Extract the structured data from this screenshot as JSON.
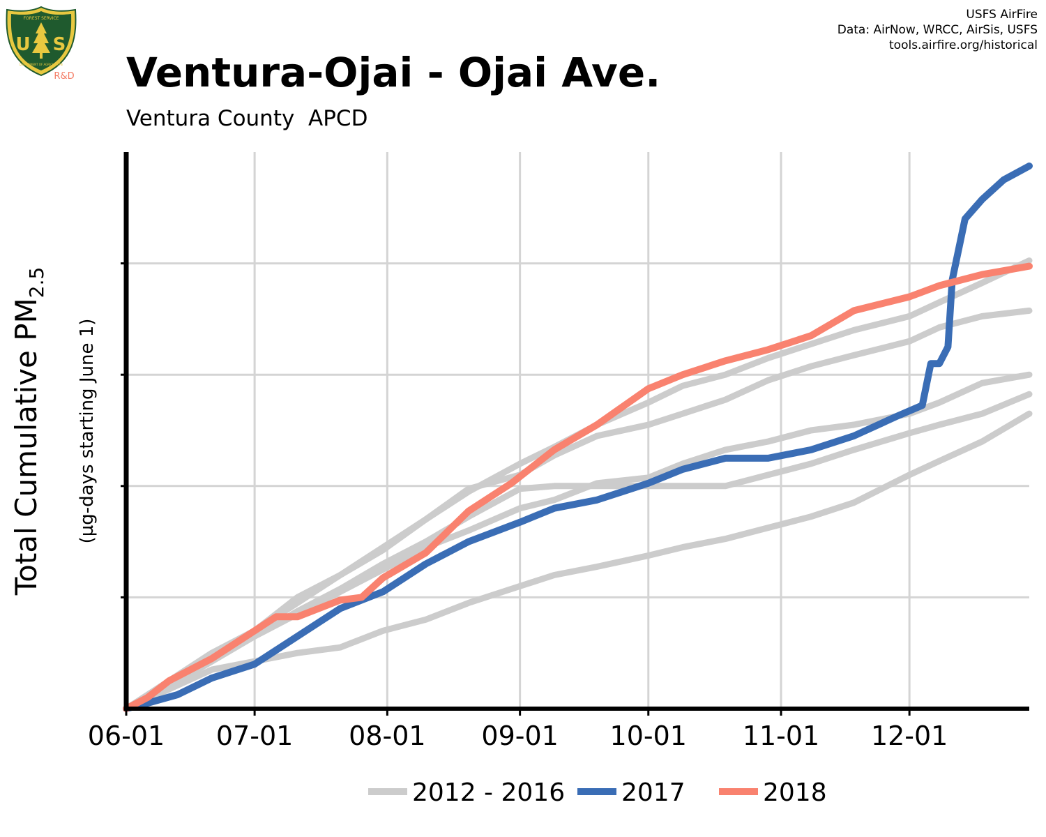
{
  "header": {
    "title": "Ventura-Ojai - Ojai Ave.",
    "subtitle": "Ventura County  APCD",
    "credits": [
      "USFS AirFire",
      "Data: AirNow, WRCC, AirSis, USFS",
      "tools.airfire.org/historical"
    ],
    "logo": {
      "ring_text": "FOREST SERVICE",
      "initials_left": "U",
      "initials_right": "S",
      "bottom_text": "DEPARTMENT OF AGRICULTURE",
      "tag": "R&D",
      "colors": {
        "fill": "#1f5a2e",
        "accent": "#e8c840",
        "tag": "#f47b63"
      }
    }
  },
  "chart_data": {
    "type": "line",
    "title": "",
    "ylabel_main": "Total Cumulative PM",
    "ylabel_sub": "2.5",
    "ylabel2": "(µg-days starting June 1)",
    "x_domain_days": [
      0,
      211
    ],
    "xticks": [
      {
        "label": "06-01",
        "day": 0
      },
      {
        "label": "07-01",
        "day": 30
      },
      {
        "label": "08-01",
        "day": 61
      },
      {
        "label": "09-01",
        "day": 92
      },
      {
        "label": "10-01",
        "day": 122
      },
      {
        "label": "11-01",
        "day": 153
      },
      {
        "label": "12-01",
        "day": 183
      }
    ],
    "ylim": [
      0,
      1000
    ],
    "yticks": [
      0,
      200,
      400,
      600,
      800
    ],
    "ytick_labels_shown": false,
    "grid": true,
    "legend_position": "bottom",
    "legend": [
      {
        "label": "2012 - 2016",
        "color": "#cccccc"
      },
      {
        "label": "2017",
        "color": "#3a6db5"
      },
      {
        "label": "2018",
        "color": "#f9826f"
      }
    ],
    "series": [
      {
        "group": "2012 - 2016",
        "color": "#cccccc",
        "points": [
          [
            0,
            0
          ],
          [
            10,
            50
          ],
          [
            20,
            100
          ],
          [
            30,
            140
          ],
          [
            40,
            190
          ],
          [
            50,
            240
          ],
          [
            60,
            290
          ],
          [
            70,
            340
          ],
          [
            80,
            390
          ],
          [
            92,
            440
          ],
          [
            100,
            470
          ],
          [
            110,
            510
          ],
          [
            122,
            550
          ],
          [
            130,
            580
          ],
          [
            140,
            600
          ],
          [
            150,
            630
          ],
          [
            160,
            655
          ],
          [
            170,
            680
          ],
          [
            183,
            705
          ],
          [
            190,
            730
          ],
          [
            200,
            765
          ],
          [
            211,
            805
          ]
        ]
      },
      {
        "group": "2012 - 2016",
        "color": "#cccccc",
        "points": [
          [
            0,
            0
          ],
          [
            10,
            40
          ],
          [
            20,
            85
          ],
          [
            30,
            130
          ],
          [
            40,
            175
          ],
          [
            50,
            215
          ],
          [
            60,
            260
          ],
          [
            70,
            300
          ],
          [
            80,
            345
          ],
          [
            92,
            395
          ],
          [
            100,
            400
          ],
          [
            110,
            400
          ],
          [
            122,
            400
          ],
          [
            130,
            400
          ],
          [
            140,
            400
          ],
          [
            150,
            420
          ],
          [
            160,
            440
          ],
          [
            170,
            465
          ],
          [
            183,
            495
          ],
          [
            190,
            510
          ],
          [
            200,
            530
          ],
          [
            211,
            565
          ]
        ]
      },
      {
        "group": "2012 - 2016",
        "color": "#cccccc",
        "points": [
          [
            0,
            0
          ],
          [
            10,
            45
          ],
          [
            20,
            90
          ],
          [
            30,
            130
          ],
          [
            40,
            170
          ],
          [
            50,
            210
          ],
          [
            60,
            250
          ],
          [
            70,
            290
          ],
          [
            80,
            320
          ],
          [
            92,
            360
          ],
          [
            100,
            375
          ],
          [
            110,
            405
          ],
          [
            122,
            415
          ],
          [
            130,
            440
          ],
          [
            140,
            465
          ],
          [
            150,
            480
          ],
          [
            160,
            500
          ],
          [
            170,
            510
          ],
          [
            183,
            530
          ],
          [
            190,
            550
          ],
          [
            200,
            585
          ],
          [
            211,
            600
          ]
        ]
      },
      {
        "group": "2012 - 2016",
        "color": "#cccccc",
        "points": [
          [
            0,
            0
          ],
          [
            10,
            35
          ],
          [
            20,
            70
          ],
          [
            30,
            85
          ],
          [
            40,
            100
          ],
          [
            50,
            110
          ],
          [
            60,
            140
          ],
          [
            70,
            160
          ],
          [
            80,
            190
          ],
          [
            92,
            220
          ],
          [
            100,
            240
          ],
          [
            110,
            255
          ],
          [
            122,
            275
          ],
          [
            130,
            290
          ],
          [
            140,
            305
          ],
          [
            150,
            325
          ],
          [
            160,
            345
          ],
          [
            170,
            370
          ],
          [
            183,
            420
          ],
          [
            190,
            445
          ],
          [
            200,
            480
          ],
          [
            211,
            530
          ]
        ]
      },
      {
        "group": "2012 - 2016",
        "color": "#cccccc",
        "points": [
          [
            0,
            0
          ],
          [
            10,
            45
          ],
          [
            20,
            90
          ],
          [
            30,
            140
          ],
          [
            40,
            200
          ],
          [
            50,
            240
          ],
          [
            60,
            285
          ],
          [
            70,
            340
          ],
          [
            80,
            395
          ],
          [
            92,
            420
          ],
          [
            100,
            455
          ],
          [
            110,
            490
          ],
          [
            122,
            510
          ],
          [
            130,
            530
          ],
          [
            140,
            555
          ],
          [
            150,
            590
          ],
          [
            160,
            615
          ],
          [
            170,
            635
          ],
          [
            183,
            660
          ],
          [
            190,
            685
          ],
          [
            200,
            705
          ],
          [
            211,
            715
          ]
        ]
      },
      {
        "group": "2017",
        "color": "#3a6db5",
        "points": [
          [
            0,
            0
          ],
          [
            5,
            10
          ],
          [
            12,
            25
          ],
          [
            20,
            55
          ],
          [
            30,
            80
          ],
          [
            40,
            130
          ],
          [
            50,
            180
          ],
          [
            60,
            210
          ],
          [
            70,
            260
          ],
          [
            80,
            300
          ],
          [
            92,
            335
          ],
          [
            100,
            360
          ],
          [
            110,
            375
          ],
          [
            122,
            405
          ],
          [
            130,
            430
          ],
          [
            140,
            450
          ],
          [
            150,
            450
          ],
          [
            160,
            465
          ],
          [
            170,
            490
          ],
          [
            180,
            525
          ],
          [
            186,
            545
          ],
          [
            188,
            620
          ],
          [
            190,
            620
          ],
          [
            192,
            650
          ],
          [
            193,
            770
          ],
          [
            196,
            880
          ],
          [
            200,
            915
          ],
          [
            205,
            950
          ],
          [
            211,
            975
          ]
        ]
      },
      {
        "group": "2018",
        "color": "#f9826f",
        "points": [
          [
            0,
            0
          ],
          [
            5,
            20
          ],
          [
            10,
            50
          ],
          [
            20,
            90
          ],
          [
            30,
            140
          ],
          [
            35,
            165
          ],
          [
            40,
            165
          ],
          [
            50,
            195
          ],
          [
            55,
            200
          ],
          [
            60,
            235
          ],
          [
            70,
            280
          ],
          [
            80,
            355
          ],
          [
            90,
            405
          ],
          [
            100,
            465
          ],
          [
            110,
            510
          ],
          [
            122,
            575
          ],
          [
            130,
            600
          ],
          [
            140,
            625
          ],
          [
            150,
            645
          ],
          [
            160,
            670
          ],
          [
            170,
            715
          ],
          [
            183,
            740
          ],
          [
            190,
            760
          ],
          [
            200,
            780
          ],
          [
            211,
            795
          ]
        ]
      }
    ]
  }
}
